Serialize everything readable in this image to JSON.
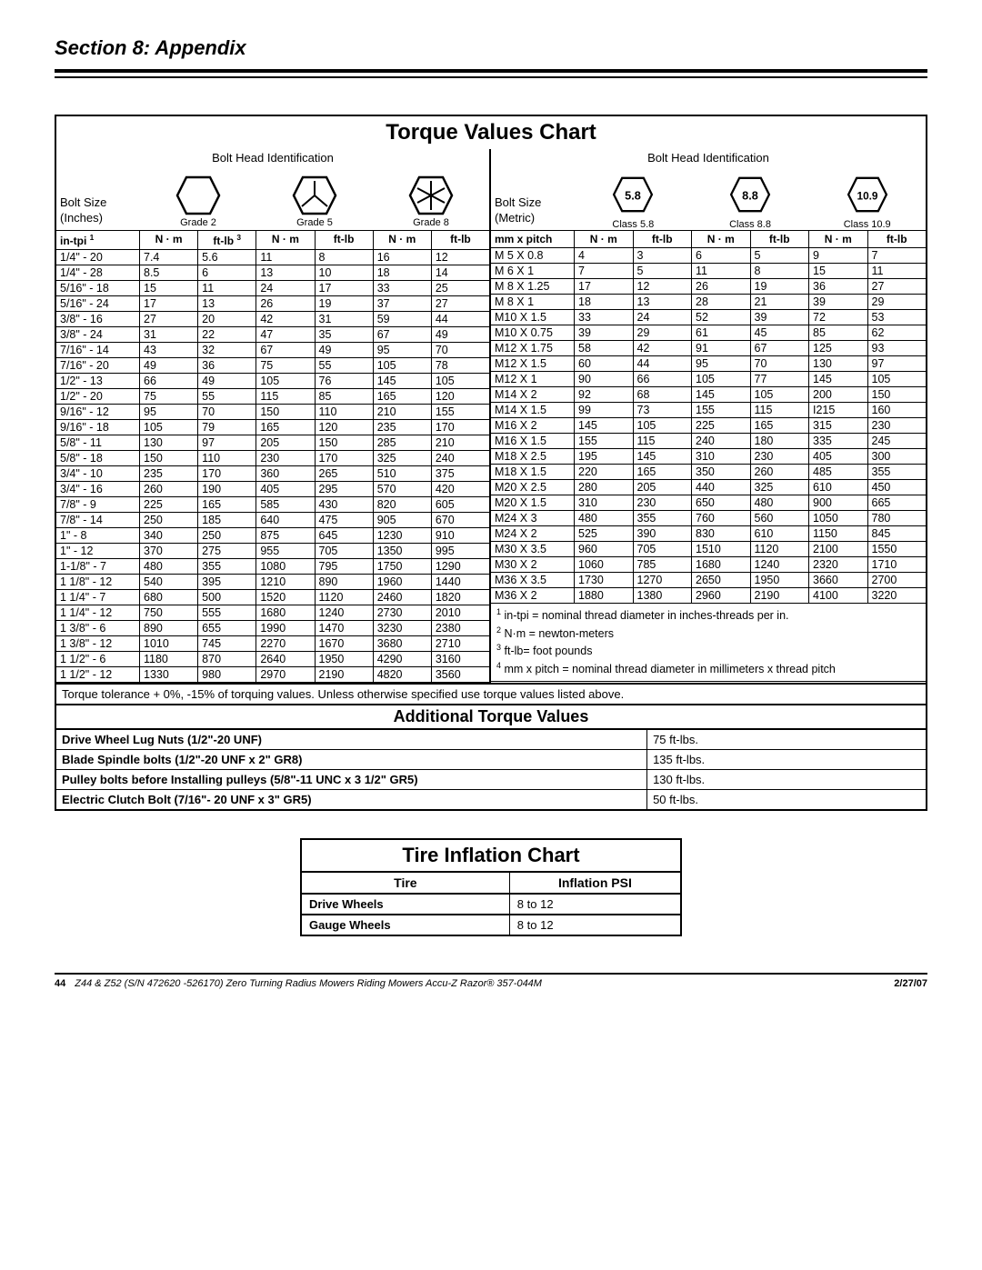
{
  "section_title": "Section 8: Appendix",
  "torque_title": "Torque Values Chart",
  "bolt_head_id": "Bolt Head Identification",
  "bolt_size_label_in": "Bolt Size\n(Inches)",
  "bolt_size_label_mm": "Bolt Size\n(Metric)",
  "grades": [
    "Grade 2",
    "Grade 5",
    "Grade 8"
  ],
  "classes": [
    "Class 5.8",
    "Class 8.8",
    "Class 10.9"
  ],
  "class_nums": [
    "5.8",
    "8.8",
    "10.9"
  ],
  "in_tpi_hdr": "in-tpi",
  "mm_pitch_hdr": "mm x pitch",
  "nm": "N · m",
  "ftlb": "ft-lb",
  "inch_rows": [
    [
      "1/4\" - 20",
      "7.4",
      "5.6",
      "11",
      "8",
      "16",
      "12"
    ],
    [
      "1/4\" - 28",
      "8.5",
      "6",
      "13",
      "10",
      "18",
      "14"
    ],
    [
      "5/16\" - 18",
      "15",
      "11",
      "24",
      "17",
      "33",
      "25"
    ],
    [
      "5/16\" - 24",
      "17",
      "13",
      "26",
      "19",
      "37",
      "27"
    ],
    [
      "3/8\" - 16",
      "27",
      "20",
      "42",
      "31",
      "59",
      "44"
    ],
    [
      "3/8\" - 24",
      "31",
      "22",
      "47",
      "35",
      "67",
      "49"
    ],
    [
      "7/16\" - 14",
      "43",
      "32",
      "67",
      "49",
      "95",
      "70"
    ],
    [
      "7/16\" - 20",
      "49",
      "36",
      "75",
      "55",
      "105",
      "78"
    ],
    [
      "1/2\" - 13",
      "66",
      "49",
      "105",
      "76",
      "145",
      "105"
    ],
    [
      "1/2\" - 20",
      "75",
      "55",
      "115",
      "85",
      "165",
      "120"
    ],
    [
      "9/16\" - 12",
      "95",
      "70",
      "150",
      "110",
      "210",
      "155"
    ],
    [
      "9/16\" - 18",
      "105",
      "79",
      "165",
      "120",
      "235",
      "170"
    ],
    [
      "5/8\" - 11",
      "130",
      "97",
      "205",
      "150",
      "285",
      "210"
    ],
    [
      "5/8\" - 18",
      "150",
      "110",
      "230",
      "170",
      "325",
      "240"
    ],
    [
      "3/4\" - 10",
      "235",
      "170",
      "360",
      "265",
      "510",
      "375"
    ],
    [
      "3/4\" - 16",
      "260",
      "190",
      "405",
      "295",
      "570",
      "420"
    ],
    [
      "7/8\" - 9",
      "225",
      "165",
      "585",
      "430",
      "820",
      "605"
    ],
    [
      "7/8\" - 14",
      "250",
      "185",
      "640",
      "475",
      "905",
      "670"
    ],
    [
      "1\" - 8",
      "340",
      "250",
      "875",
      "645",
      "1230",
      "910"
    ],
    [
      "1\" - 12",
      "370",
      "275",
      "955",
      "705",
      "1350",
      "995"
    ],
    [
      "1-1/8\" - 7",
      "480",
      "355",
      "1080",
      "795",
      "1750",
      "1290"
    ],
    [
      "1 1/8\" - 12",
      "540",
      "395",
      "1210",
      "890",
      "1960",
      "1440"
    ],
    [
      "1 1/4\" - 7",
      "680",
      "500",
      "1520",
      "1120",
      "2460",
      "1820"
    ],
    [
      "1 1/4\" - 12",
      "750",
      "555",
      "1680",
      "1240",
      "2730",
      "2010"
    ],
    [
      "1 3/8\" - 6",
      "890",
      "655",
      "1990",
      "1470",
      "3230",
      "2380"
    ],
    [
      "1 3/8\" - 12",
      "1010",
      "745",
      "2270",
      "1670",
      "3680",
      "2710"
    ],
    [
      "1 1/2\" - 6",
      "1180",
      "870",
      "2640",
      "1950",
      "4290",
      "3160"
    ],
    [
      "1 1/2\" - 12",
      "1330",
      "980",
      "2970",
      "2190",
      "4820",
      "3560"
    ]
  ],
  "metric_rows": [
    [
      "M 5 X 0.8",
      "4",
      "3",
      "6",
      "5",
      "9",
      "7"
    ],
    [
      "M 6 X 1",
      "7",
      "5",
      "11",
      "8",
      "15",
      "11"
    ],
    [
      "M 8 X 1.25",
      "17",
      "12",
      "26",
      "19",
      "36",
      "27"
    ],
    [
      "M 8 X 1",
      "18",
      "13",
      "28",
      "21",
      "39",
      "29"
    ],
    [
      "M10 X 1.5",
      "33",
      "24",
      "52",
      "39",
      "72",
      "53"
    ],
    [
      "M10 X 0.75",
      "39",
      "29",
      "61",
      "45",
      "85",
      "62"
    ],
    [
      "M12 X 1.75",
      "58",
      "42",
      "91",
      "67",
      "125",
      "93"
    ],
    [
      "M12 X 1.5",
      "60",
      "44",
      "95",
      "70",
      "130",
      "97"
    ],
    [
      "M12 X 1",
      "90",
      "66",
      "105",
      "77",
      "145",
      "105"
    ],
    [
      "M14 X 2",
      "92",
      "68",
      "145",
      "105",
      "200",
      "150"
    ],
    [
      "M14 X 1.5",
      "99",
      "73",
      "155",
      "115",
      "I215",
      "160"
    ],
    [
      "M16 X 2",
      "145",
      "105",
      "225",
      "165",
      "315",
      "230"
    ],
    [
      "M16 X 1.5",
      "155",
      "115",
      "240",
      "180",
      "335",
      "245"
    ],
    [
      "M18 X 2.5",
      "195",
      "145",
      "310",
      "230",
      "405",
      "300"
    ],
    [
      "M18 X 1.5",
      "220",
      "165",
      "350",
      "260",
      "485",
      "355"
    ],
    [
      "M20 X 2.5",
      "280",
      "205",
      "440",
      "325",
      "610",
      "450"
    ],
    [
      "M20 X 1.5",
      "310",
      "230",
      "650",
      "480",
      "900",
      "665"
    ],
    [
      "M24 X 3",
      "480",
      "355",
      "760",
      "560",
      "1050",
      "780"
    ],
    [
      "M24 X 2",
      "525",
      "390",
      "830",
      "610",
      "1150",
      "845"
    ],
    [
      "M30 X 3.5",
      "960",
      "705",
      "1510",
      "1120",
      "2100",
      "1550"
    ],
    [
      "M30 X 2",
      "1060",
      "785",
      "1680",
      "1240",
      "2320",
      "1710"
    ],
    [
      "M36 X 3.5",
      "1730",
      "1270",
      "2650",
      "1950",
      "3660",
      "2700"
    ],
    [
      "M36 X 2",
      "1880",
      "1380",
      "2960",
      "2190",
      "4100",
      "3220"
    ]
  ],
  "note1": "in-tpi = nominal thread diameter in inches-threads per in.",
  "note2": "N·m = newton-meters",
  "note3": "ft-lb= foot pounds",
  "note4": "mm x pitch = nominal thread diameter in millimeters x thread pitch",
  "tolerance": "Torque tolerance + 0%, -15% of torquing values. Unless otherwise specified use torque values listed above.",
  "add_title": "Additional Torque Values",
  "add_rows": [
    [
      "Drive Wheel Lug Nuts (1/2\"-20 UNF)",
      "75 ft-lbs."
    ],
    [
      "Blade Spindle bolts (1/2\"-20 UNF x 2\" GR8)",
      "135 ft-lbs."
    ],
    [
      "Pulley bolts before Installing pulleys (5/8\"-11 UNC x 3 1/2\" GR5)",
      "130 ft-lbs."
    ],
    [
      "Electric Clutch Bolt (7/16\"- 20 UNF x 3\" GR5)",
      "50 ft-lbs."
    ]
  ],
  "tire_title": "Tire Inflation Chart",
  "tire_hdr": [
    "Tire",
    "Inflation PSI"
  ],
  "tire_rows": [
    [
      "Drive Wheels",
      "8 to 12"
    ],
    [
      "Gauge Wheels",
      "8 to 12"
    ]
  ],
  "page_num": "44",
  "footer_text": "Z44 & Z52 (S/N 472620 -526170) Zero Turning Radius Mowers Riding Mowers  Accu-Z Razor®  357-044M",
  "footer_date": "2/27/07"
}
